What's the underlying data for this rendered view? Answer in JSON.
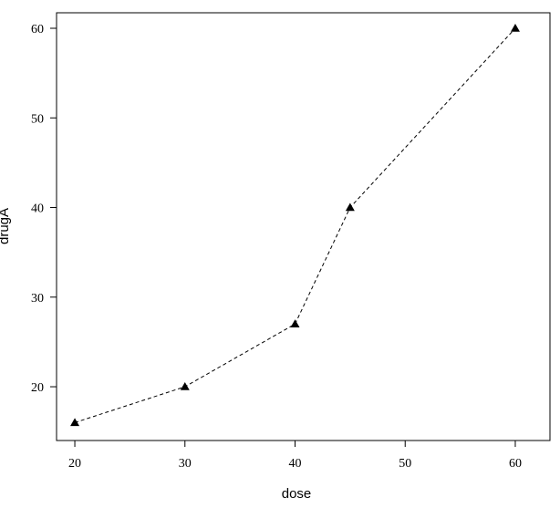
{
  "chart_data": {
    "type": "line",
    "x_label": "dose",
    "y_label": "drugA",
    "x": [
      20,
      30,
      40,
      45,
      60
    ],
    "values": [
      16,
      20,
      27,
      40,
      60
    ],
    "color": "#000000",
    "line_style": "dashed",
    "marker": "triangle",
    "xlim": [
      18.34,
      63.15
    ],
    "ylim": [
      14.0,
      61.73
    ],
    "xticks": [
      20,
      30,
      40,
      50,
      60
    ],
    "yticks": [
      20,
      30,
      40,
      50,
      60
    ],
    "grid": false
  }
}
